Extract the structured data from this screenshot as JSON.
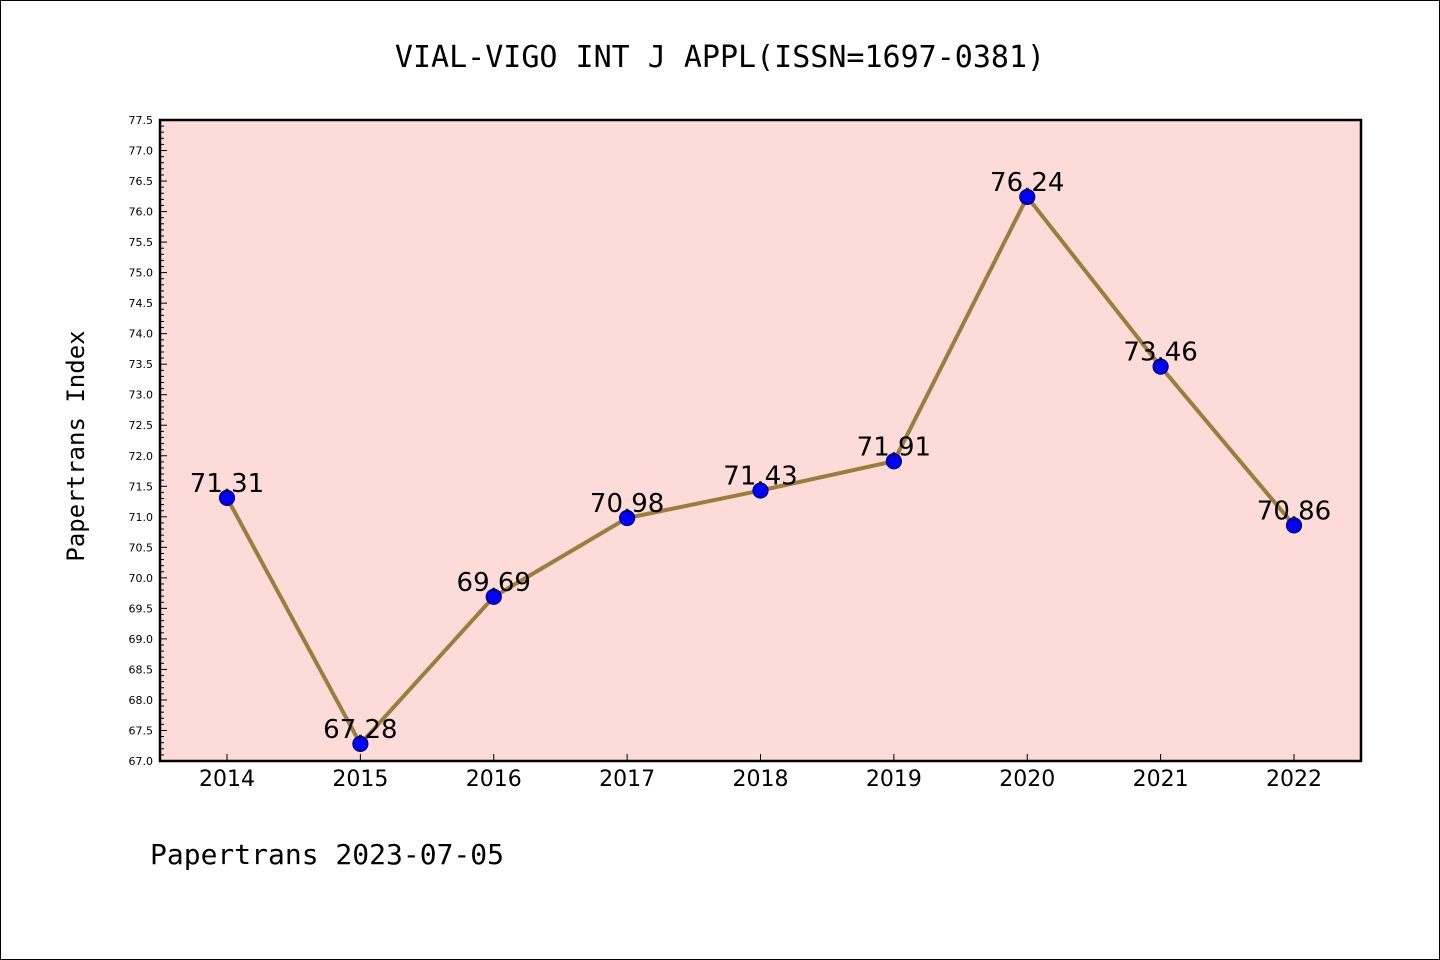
{
  "chart_data": {
    "type": "line",
    "title": "VIAL-VIGO INT J APPL(ISSN=1697-0381)",
    "xlabel": "",
    "ylabel": "Papertrans Index",
    "categories": [
      "2014",
      "2015",
      "2016",
      "2017",
      "2018",
      "2019",
      "2020",
      "2021",
      "2022"
    ],
    "values": [
      71.31,
      67.28,
      69.69,
      70.98,
      71.43,
      71.91,
      76.24,
      73.46,
      70.86
    ],
    "data_labels": [
      "71.31",
      "67.28",
      "69.69",
      "70.98",
      "71.43",
      "71.91",
      "76.24",
      "73.46",
      "70.86"
    ],
    "ylim": [
      67.0,
      77.5
    ],
    "yticks": [
      "67.0",
      "67.5",
      "68.0",
      "68.5",
      "69.0",
      "69.5",
      "70.0",
      "70.5",
      "71.0",
      "71.5",
      "72.0",
      "72.5",
      "73.0",
      "73.5",
      "74.0",
      "74.5",
      "75.0",
      "75.5",
      "76.0",
      "76.5",
      "77.0",
      "77.5"
    ],
    "grid": false,
    "legend": "none",
    "colors": {
      "plot_background": "#fddbd8",
      "line": "#9b7e3c",
      "marker_fill": "#0000ff",
      "marker_edge": "#000066"
    }
  },
  "footer": {
    "text": "Papertrans 2023-07-05"
  }
}
